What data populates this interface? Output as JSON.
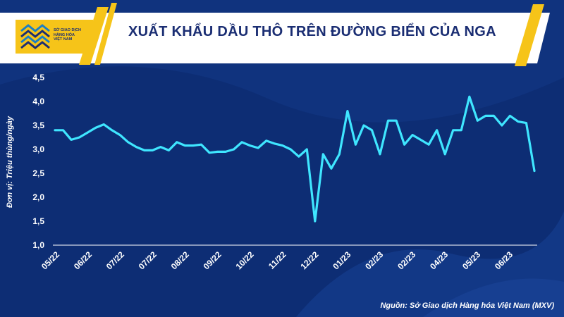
{
  "header": {
    "logo_lines": [
      "SỞ GIAO DỊCH",
      "HÀNG HÓA",
      "VIỆT NAM"
    ],
    "title": "XUẤT KHẨU DẦU THÔ TRÊN ĐƯỜNG BIỂN CỦA NGA"
  },
  "footer": {
    "source": "Nguồn: Sở Giao dịch Hàng hóa Việt Nam (MXV)"
  },
  "colors": {
    "background": "#0d2d74",
    "line": "#3fe6ff",
    "header": "#ffffff",
    "logo": "#f6c419",
    "title_text": "#1b2e73"
  },
  "chart_data": {
    "type": "line",
    "title": "XUẤT KHẨU DẦU THÔ TRÊN ĐƯỜNG BIỂN CỦA NGA",
    "ylabel": "Đơn vị: Triệu thùng/ngày",
    "xlabel": "",
    "ylim": [
      1.0,
      4.5
    ],
    "yticks": [
      "1,0",
      "1,5",
      "2,0",
      "2,5",
      "3,0",
      "3,5",
      "4,0",
      "4,5"
    ],
    "ytick_values": [
      1.0,
      1.5,
      2.0,
      2.5,
      3.0,
      3.5,
      4.0,
      4.5
    ],
    "xtick_labels": [
      "05/22",
      "06/22",
      "07/22",
      "07/22",
      "08/22",
      "09/22",
      "10/22",
      "11/22",
      "12/22",
      "01/23",
      "02/23",
      "02/23",
      "04/23",
      "05/23",
      "06/23"
    ],
    "grid": false,
    "series": [
      {
        "values": [
          3.4,
          3.4,
          3.2,
          3.25,
          3.35,
          3.45,
          3.52,
          3.4,
          3.3,
          3.15,
          3.05,
          2.98,
          2.98,
          3.05,
          2.98,
          3.15,
          3.08,
          3.08,
          3.1,
          2.93,
          2.95,
          2.95,
          3.0,
          3.15,
          3.08,
          3.03,
          3.18,
          3.12,
          3.08,
          3.0,
          2.85,
          3.0,
          1.5,
          2.9,
          2.6,
          2.9,
          3.8,
          3.1,
          3.5,
          3.4,
          2.9,
          3.6,
          3.6,
          3.1,
          3.3,
          3.2,
          3.1,
          3.4,
          2.9,
          3.4,
          3.4,
          4.1,
          3.6,
          3.7,
          3.7,
          3.5,
          3.7,
          3.58,
          3.55,
          2.55
        ]
      }
    ]
  }
}
